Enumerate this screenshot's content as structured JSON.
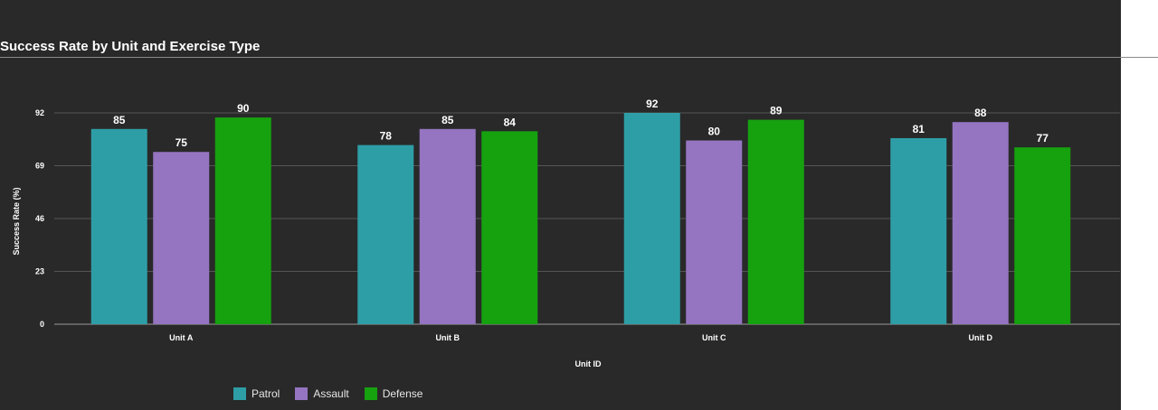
{
  "chart_data": {
    "type": "bar",
    "title": "Success Rate by Unit and Exercise Type",
    "xlabel": "Unit ID",
    "ylabel": "Success Rate (%)",
    "categories": [
      "Unit A",
      "Unit B",
      "Unit C",
      "Unit D"
    ],
    "series": [
      {
        "name": "Patrol",
        "color": "#2e9ea6",
        "values": [
          85,
          78,
          92,
          81
        ]
      },
      {
        "name": "Assault",
        "color": "#9575c1",
        "values": [
          75,
          85,
          80,
          88
        ]
      },
      {
        "name": "Defense",
        "color": "#16a10f",
        "values": [
          90,
          84,
          89,
          77
        ]
      }
    ],
    "yticks": [
      0,
      23,
      46,
      69,
      92
    ],
    "ylim": [
      0,
      92
    ],
    "grid": true,
    "legend_position": "bottom-left"
  }
}
